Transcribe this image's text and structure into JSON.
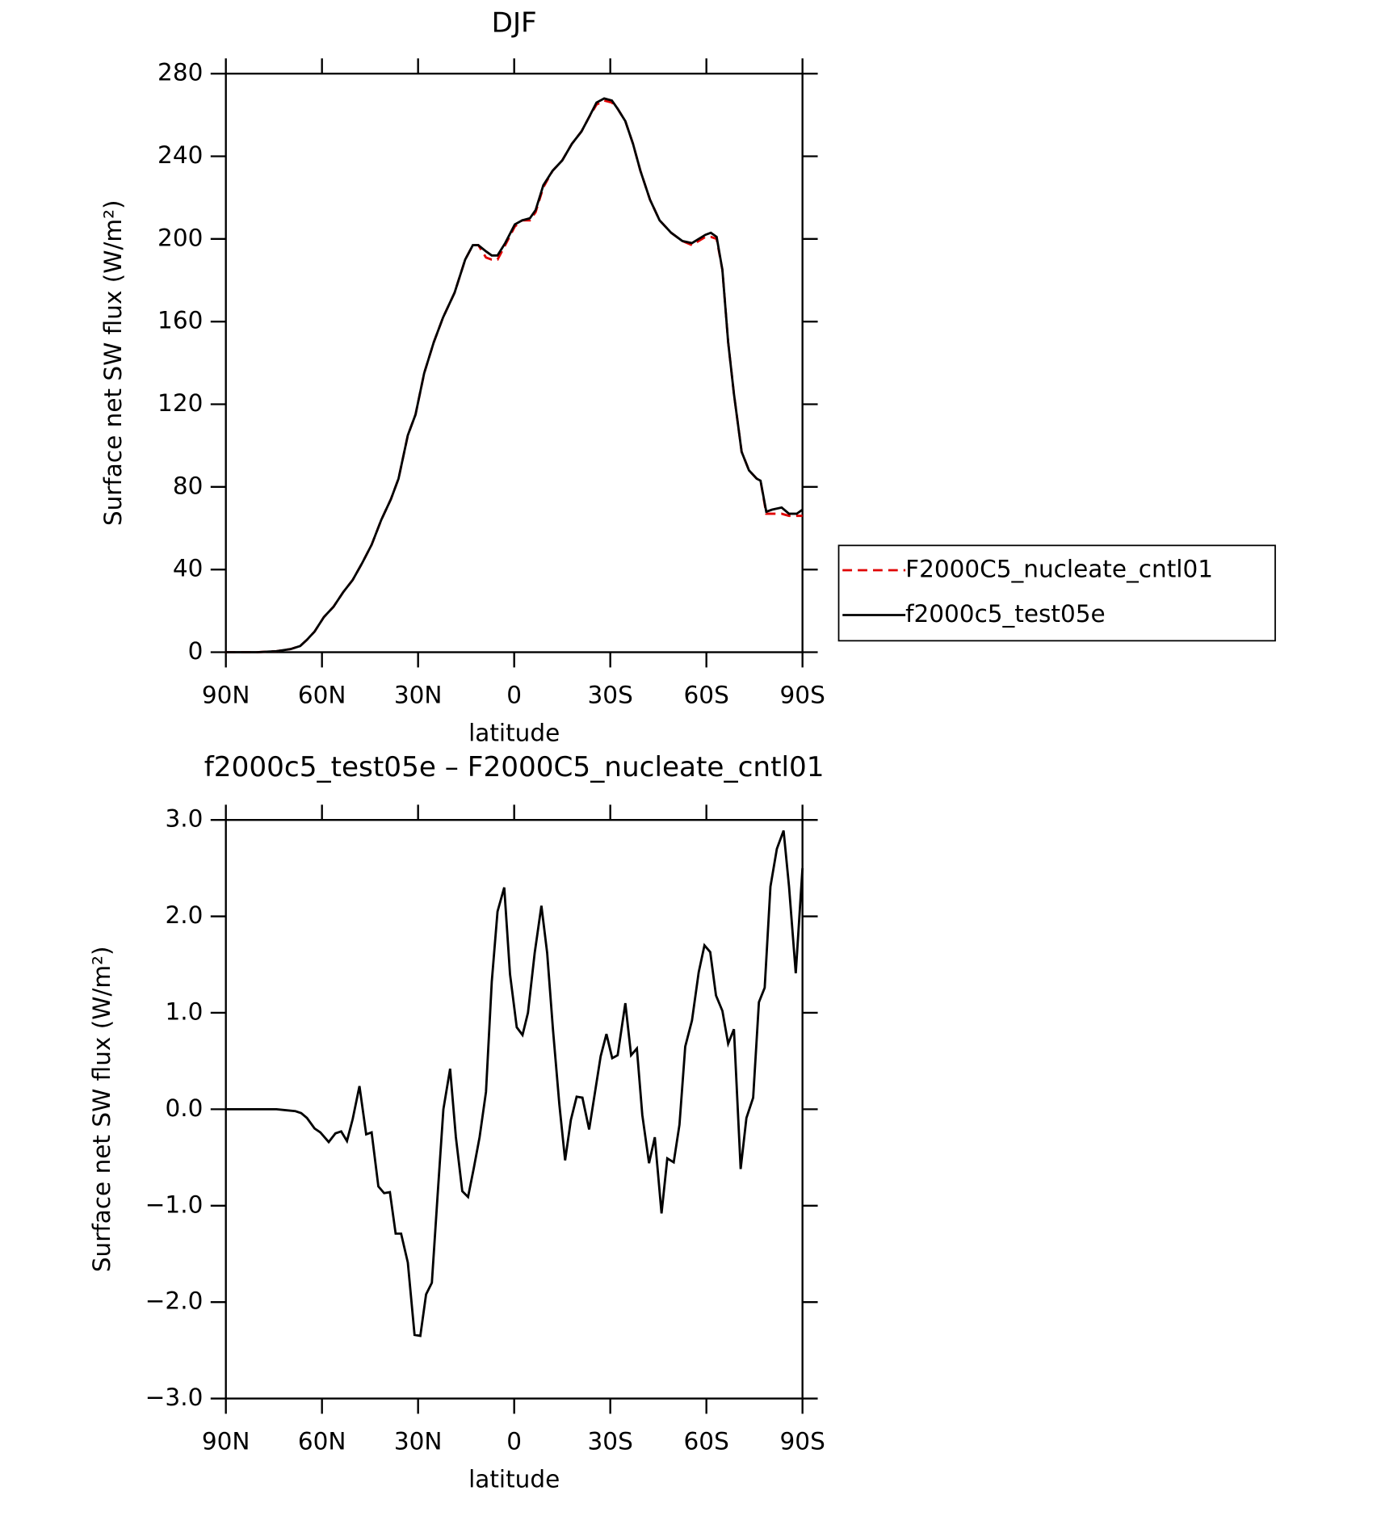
{
  "chart_data": [
    {
      "type": "line",
      "title": "DJF",
      "x_label": "latitude",
      "y_label": "Surface net SW flux (W/m²)",
      "x": [
        90,
        80.2,
        74.2,
        69.8,
        66.8,
        64.7,
        62.3,
        59.4,
        56.4,
        53.4,
        50.4,
        47.5,
        44.5,
        41.5,
        38.5,
        36.1,
        33.2,
        30.8,
        28.1,
        25.1,
        22.2,
        18.6,
        15.3,
        12.9,
        11.2,
        8.8,
        7.0,
        5.2,
        2.8,
        -0.2,
        -2.5,
        -4.9,
        -6.7,
        -9.1,
        -12.0,
        -15.0,
        -18.0,
        -21.0,
        -23.4,
        -25.7,
        -28.1,
        -30.5,
        -32.3,
        -34.7,
        -37.1,
        -39.4,
        -42.4,
        -45.4,
        -49.0,
        -52.5,
        -55.5,
        -59.7,
        -61.4,
        -63.2,
        -65.0,
        -66.8,
        -68.6,
        -71.0,
        -73.3,
        -75.7,
        -76.9,
        -78.7,
        -80.5,
        -83.5,
        -85.8,
        -88.2,
        -90
      ],
      "series": [
        {
          "name": "F2000C5_nucleate_cntl01",
          "color": "#e00000",
          "line_style": "dashed",
          "values": [
            0,
            0,
            0.5,
            1.5,
            3,
            6,
            10,
            17,
            22,
            29,
            35,
            43,
            52,
            64,
            74,
            84,
            105,
            115,
            135,
            150,
            162,
            174,
            190,
            197,
            197,
            191,
            190,
            190,
            197,
            206,
            209,
            209,
            213,
            225,
            233,
            238,
            246,
            252,
            259,
            265,
            267,
            266,
            263,
            257,
            246,
            233,
            219,
            209,
            203,
            199,
            197,
            201,
            201,
            200,
            185,
            150,
            125,
            97,
            88,
            84,
            83,
            67,
            67,
            67,
            66,
            66,
            66
          ]
        },
        {
          "name": "f2000c5_test05e",
          "color": "#000000",
          "line_style": "solid",
          "values": [
            0,
            0,
            0.5,
            1.5,
            3,
            6,
            10,
            17,
            22,
            29,
            35,
            43,
            52,
            64,
            74,
            84,
            105,
            115,
            135,
            150,
            162,
            174,
            190,
            197,
            197,
            194,
            192,
            192,
            198,
            207,
            209,
            210,
            214,
            226,
            233,
            238,
            246,
            252,
            259,
            266,
            268,
            267,
            263,
            257,
            246,
            233,
            219,
            209,
            203,
            199,
            198,
            202,
            203,
            201,
            185,
            150,
            125,
            97,
            88,
            84,
            83,
            68,
            69,
            70,
            67,
            67,
            69
          ]
        }
      ],
      "xlim": [
        90,
        -90
      ],
      "xticks": [
        {
          "value": 90,
          "label": "90N"
        },
        {
          "value": 60,
          "label": "60N"
        },
        {
          "value": 30,
          "label": "30N"
        },
        0,
        {
          "value": -30,
          "label": "30S"
        },
        {
          "value": -60,
          "label": "60S"
        },
        {
          "value": -90,
          "label": "90S"
        }
      ],
      "ylim": [
        0,
        280
      ],
      "yticks": [
        0,
        40,
        80,
        120,
        160,
        200,
        240,
        280
      ],
      "legend": "right"
    },
    {
      "type": "line",
      "title": "f2000c5_test05e – F2000C5_nucleate_cntl01",
      "x_label": "latitude",
      "y_label": "Surface net SW flux (W/m²)",
      "x": [
        90,
        77.2,
        74.2,
        71.3,
        68.3,
        66.5,
        64.7,
        62.3,
        60.5,
        57.9,
        55.8,
        54.0,
        52.2,
        50.4,
        48.3,
        46.2,
        44.5,
        42.4,
        40.6,
        38.8,
        37.0,
        35.3,
        33.2,
        31.1,
        29.3,
        27.5,
        25.7,
        23.9,
        22.1,
        20.0,
        18.2,
        16.2,
        14.4,
        12.6,
        10.8,
        8.8,
        7.0,
        5.2,
        3.1,
        1.3,
        -0.8,
        -2.6,
        -4.3,
        -6.4,
        -8.5,
        -10.3,
        -12.1,
        -14.1,
        -15.9,
        -17.7,
        -19.5,
        -21.3,
        -23.4,
        -25.2,
        -27.0,
        -28.8,
        -30.6,
        -32.3,
        -34.7,
        -36.5,
        -38.3,
        -40.0,
        -42.1,
        -43.9,
        -46.0,
        -47.8,
        -49.8,
        -51.6,
        -53.4,
        -55.5,
        -57.6,
        -59.4,
        -61.2,
        -63.0,
        -65.0,
        -66.8,
        -68.6,
        -70.7,
        -72.5,
        -74.6,
        -76.4,
        -78.2,
        -80.0,
        -82.0,
        -84.1,
        -85.8,
        -87.9,
        -90
      ],
      "series": [
        {
          "name": "f2000c5_test05e – F2000C5_nucleate_cntl01",
          "color": "#000000",
          "line_style": "solid",
          "values": [
            0,
            0,
            0,
            -0.01,
            -0.02,
            -0.04,
            -0.09,
            -0.2,
            -0.24,
            -0.34,
            -0.25,
            -0.23,
            -0.33,
            -0.1,
            0.24,
            -0.26,
            -0.24,
            -0.8,
            -0.87,
            -0.86,
            -1.29,
            -1.29,
            -1.59,
            -2.34,
            -2.35,
            -1.92,
            -1.8,
            -0.89,
            0,
            0.42,
            -0.29,
            -0.85,
            -0.91,
            -0.61,
            -0.29,
            0.18,
            1.32,
            2.05,
            2.3,
            1.4,
            0.85,
            0.77,
            1.0,
            1.62,
            2.11,
            1.62,
            0.83,
            0.05,
            -0.53,
            -0.11,
            0.13,
            0.12,
            -0.21,
            0.17,
            0.55,
            0.78,
            0.53,
            0.56,
            1.1,
            0.56,
            0.63,
            -0.06,
            -0.56,
            -0.29,
            -1.08,
            -0.51,
            -0.55,
            -0.16,
            0.65,
            0.92,
            1.42,
            1.7,
            1.63,
            1.18,
            1.02,
            0.68,
            0.83,
            -0.62,
            -0.09,
            0.12,
            1.11,
            1.26,
            2.31,
            2.7,
            2.89,
            2.31,
            1.41,
            2.5
          ]
        }
      ],
      "xlim": [
        90,
        -90
      ],
      "xticks": [
        {
          "value": 90,
          "label": "90N"
        },
        {
          "value": 60,
          "label": "60N"
        },
        {
          "value": 30,
          "label": "30N"
        },
        0,
        {
          "value": -30,
          "label": "30S"
        },
        {
          "value": -60,
          "label": "60S"
        },
        {
          "value": -90,
          "label": "90S"
        }
      ],
      "ylim": [
        -3,
        3
      ],
      "yticks": [
        {
          "value": -3,
          "label": "−3.0"
        },
        {
          "value": -2,
          "label": "−2.0"
        },
        {
          "value": -1,
          "label": "−1.0"
        },
        {
          "value": 0,
          "label": "0.0"
        },
        {
          "value": 1,
          "label": "1.0"
        },
        {
          "value": 2,
          "label": "2.0"
        },
        {
          "value": 3,
          "label": "3.0"
        }
      ]
    }
  ]
}
